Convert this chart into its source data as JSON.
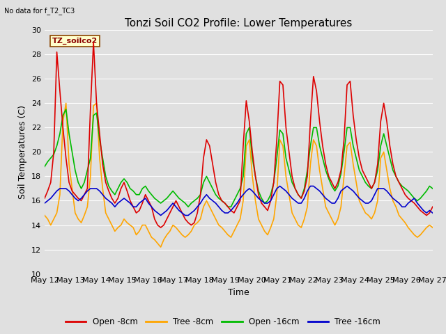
{
  "title": "Tonzi Soil CO2 Profile: Lower Temperatures",
  "subtitle": "No data for f_T2_TC3",
  "ylabel": "Soil Temperatures (C)",
  "xlabel": "Time",
  "ylim": [
    10,
    30
  ],
  "yticks": [
    10,
    12,
    14,
    16,
    18,
    20,
    22,
    24,
    26,
    28,
    30
  ],
  "x_labels": [
    "May 12",
    "May 13",
    "May 14",
    "May 15",
    "May 16",
    "May 17",
    "May 18",
    "May 19",
    "May 20",
    "May 21",
    "May 22",
    "May 23",
    "May 24",
    "May 25",
    "May 26",
    "May 27"
  ],
  "legend_label": "TZ_soilco2",
  "series": {
    "Open -8cm": {
      "color": "#dd0000",
      "lw": 1.2
    },
    "Tree -8cm": {
      "color": "#ffa500",
      "lw": 1.2
    },
    "Open -16cm": {
      "color": "#00bb00",
      "lw": 1.2
    },
    "Tree -16cm": {
      "color": "#0000cc",
      "lw": 1.2
    }
  },
  "background_color": "#e0e0e0",
  "plot_bg_color": "#e0e0e0",
  "grid_color": "#ffffff",
  "title_fontsize": 11,
  "axis_fontsize": 9,
  "tick_fontsize": 8,
  "open8_data": [
    16.2,
    16.8,
    17.5,
    20.0,
    28.2,
    25.0,
    22.0,
    19.5,
    17.5,
    16.8,
    16.5,
    16.2,
    16.0,
    16.5,
    17.0,
    23.5,
    29.0,
    24.0,
    21.5,
    19.0,
    17.5,
    16.8,
    16.2,
    15.8,
    16.2,
    17.0,
    17.5,
    16.8,
    16.0,
    15.5,
    15.0,
    15.2,
    15.8,
    16.5,
    16.0,
    15.5,
    14.5,
    14.0,
    13.8,
    14.0,
    14.5,
    15.0,
    15.5,
    16.0,
    15.5,
    15.0,
    14.5,
    14.2,
    14.0,
    14.2,
    15.0,
    16.5,
    19.5,
    21.0,
    20.5,
    19.0,
    17.5,
    16.5,
    16.0,
    15.8,
    15.5,
    15.2,
    15.0,
    15.5,
    16.0,
    20.5,
    24.2,
    22.5,
    20.0,
    18.0,
    16.5,
    15.8,
    15.5,
    15.2,
    16.0,
    17.5,
    21.0,
    25.8,
    25.5,
    22.0,
    20.0,
    18.0,
    17.0,
    16.5,
    16.2,
    16.8,
    18.0,
    22.5,
    26.2,
    25.0,
    22.5,
    20.5,
    19.0,
    18.0,
    17.5,
    17.0,
    17.5,
    18.5,
    21.0,
    25.5,
    25.8,
    23.0,
    21.0,
    19.5,
    18.5,
    18.0,
    17.5,
    17.0,
    17.5,
    19.0,
    22.5,
    24.0,
    22.5,
    20.5,
    19.0,
    18.0,
    17.5,
    17.0,
    16.5,
    16.2,
    16.0,
    15.8,
    15.5,
    15.2,
    15.0,
    14.8,
    15.0,
    15.5
  ],
  "tree8_data": [
    14.8,
    14.5,
    14.0,
    14.5,
    15.0,
    16.5,
    22.5,
    24.0,
    19.0,
    17.0,
    15.0,
    14.5,
    14.2,
    14.8,
    15.5,
    18.0,
    23.8,
    24.0,
    19.5,
    17.0,
    15.0,
    14.5,
    14.0,
    13.5,
    13.8,
    14.0,
    14.5,
    14.2,
    14.0,
    13.8,
    13.2,
    13.5,
    14.0,
    14.0,
    13.5,
    13.0,
    12.8,
    12.5,
    12.2,
    12.8,
    13.2,
    13.5,
    14.0,
    13.8,
    13.5,
    13.2,
    13.0,
    13.2,
    13.5,
    14.0,
    14.2,
    14.5,
    15.5,
    16.0,
    15.5,
    15.0,
    14.5,
    14.0,
    13.8,
    13.5,
    13.2,
    13.0,
    13.5,
    14.0,
    14.5,
    16.0,
    20.5,
    21.0,
    18.0,
    16.0,
    14.5,
    14.0,
    13.5,
    13.2,
    13.8,
    14.5,
    16.5,
    21.0,
    20.5,
    18.0,
    16.5,
    15.0,
    14.5,
    14.0,
    13.8,
    14.5,
    15.5,
    19.0,
    21.0,
    20.5,
    18.5,
    17.0,
    15.5,
    15.0,
    14.5,
    14.0,
    14.5,
    15.5,
    18.0,
    20.5,
    20.8,
    19.0,
    17.5,
    16.0,
    15.5,
    15.0,
    14.8,
    14.5,
    15.0,
    16.0,
    19.5,
    20.0,
    18.5,
    17.0,
    16.0,
    15.5,
    14.8,
    14.5,
    14.2,
    13.8,
    13.5,
    13.2,
    13.0,
    13.2,
    13.5,
    13.8,
    14.0,
    13.8
  ],
  "open16_data": [
    18.8,
    19.2,
    19.5,
    19.8,
    20.5,
    21.5,
    23.0,
    23.5,
    21.5,
    20.0,
    18.5,
    17.5,
    17.0,
    17.5,
    18.5,
    19.5,
    23.0,
    23.2,
    21.0,
    19.5,
    18.0,
    17.2,
    16.8,
    16.5,
    17.0,
    17.5,
    17.8,
    17.5,
    17.0,
    16.8,
    16.5,
    16.5,
    17.0,
    17.2,
    16.8,
    16.5,
    16.2,
    16.0,
    15.8,
    16.0,
    16.2,
    16.5,
    16.8,
    16.5,
    16.2,
    16.0,
    15.8,
    15.5,
    15.8,
    16.0,
    16.2,
    16.5,
    17.5,
    18.0,
    17.5,
    17.0,
    16.5,
    16.2,
    16.0,
    15.8,
    15.5,
    15.5,
    16.0,
    16.5,
    17.0,
    18.0,
    21.5,
    22.0,
    19.5,
    18.0,
    16.8,
    16.2,
    15.8,
    16.0,
    16.5,
    17.5,
    19.5,
    21.8,
    21.5,
    19.5,
    18.5,
    17.5,
    17.0,
    16.5,
    16.2,
    17.0,
    18.5,
    20.5,
    22.0,
    22.0,
    20.5,
    19.5,
    18.5,
    17.8,
    17.2,
    16.8,
    17.2,
    18.2,
    20.0,
    22.0,
    22.0,
    20.5,
    19.5,
    18.5,
    18.0,
    17.5,
    17.2,
    17.0,
    17.5,
    18.5,
    20.5,
    21.5,
    20.5,
    19.5,
    18.5,
    18.0,
    17.5,
    17.2,
    17.0,
    16.8,
    16.5,
    16.2,
    16.0,
    16.2,
    16.5,
    16.8,
    17.2,
    17.0
  ],
  "tree16_data": [
    15.8,
    16.0,
    16.2,
    16.5,
    16.8,
    17.0,
    17.0,
    17.0,
    16.8,
    16.5,
    16.2,
    16.0,
    16.2,
    16.5,
    16.8,
    17.0,
    17.0,
    17.0,
    16.8,
    16.5,
    16.2,
    16.0,
    15.8,
    15.5,
    15.8,
    16.0,
    16.2,
    16.0,
    15.8,
    15.5,
    15.5,
    15.8,
    16.0,
    16.2,
    15.8,
    15.5,
    15.2,
    15.0,
    14.8,
    15.0,
    15.2,
    15.5,
    15.8,
    15.5,
    15.2,
    15.0,
    14.8,
    14.8,
    15.0,
    15.2,
    15.5,
    15.8,
    16.2,
    16.5,
    16.2,
    16.0,
    15.8,
    15.5,
    15.2,
    15.0,
    15.0,
    15.2,
    15.5,
    15.8,
    16.2,
    16.5,
    16.8,
    17.0,
    16.8,
    16.5,
    16.2,
    16.0,
    15.8,
    15.8,
    16.0,
    16.5,
    17.0,
    17.2,
    17.0,
    16.8,
    16.5,
    16.2,
    16.0,
    15.8,
    15.8,
    16.2,
    16.8,
    17.2,
    17.2,
    17.0,
    16.8,
    16.5,
    16.2,
    16.0,
    15.8,
    15.8,
    16.2,
    16.8,
    17.0,
    17.2,
    17.0,
    16.8,
    16.5,
    16.2,
    16.0,
    15.8,
    15.8,
    16.0,
    16.5,
    17.0,
    17.0,
    17.0,
    16.8,
    16.5,
    16.2,
    16.0,
    15.8,
    15.5,
    15.5,
    15.8,
    16.0,
    16.2,
    15.8,
    15.5,
    15.2,
    15.0,
    15.2,
    15.0
  ]
}
